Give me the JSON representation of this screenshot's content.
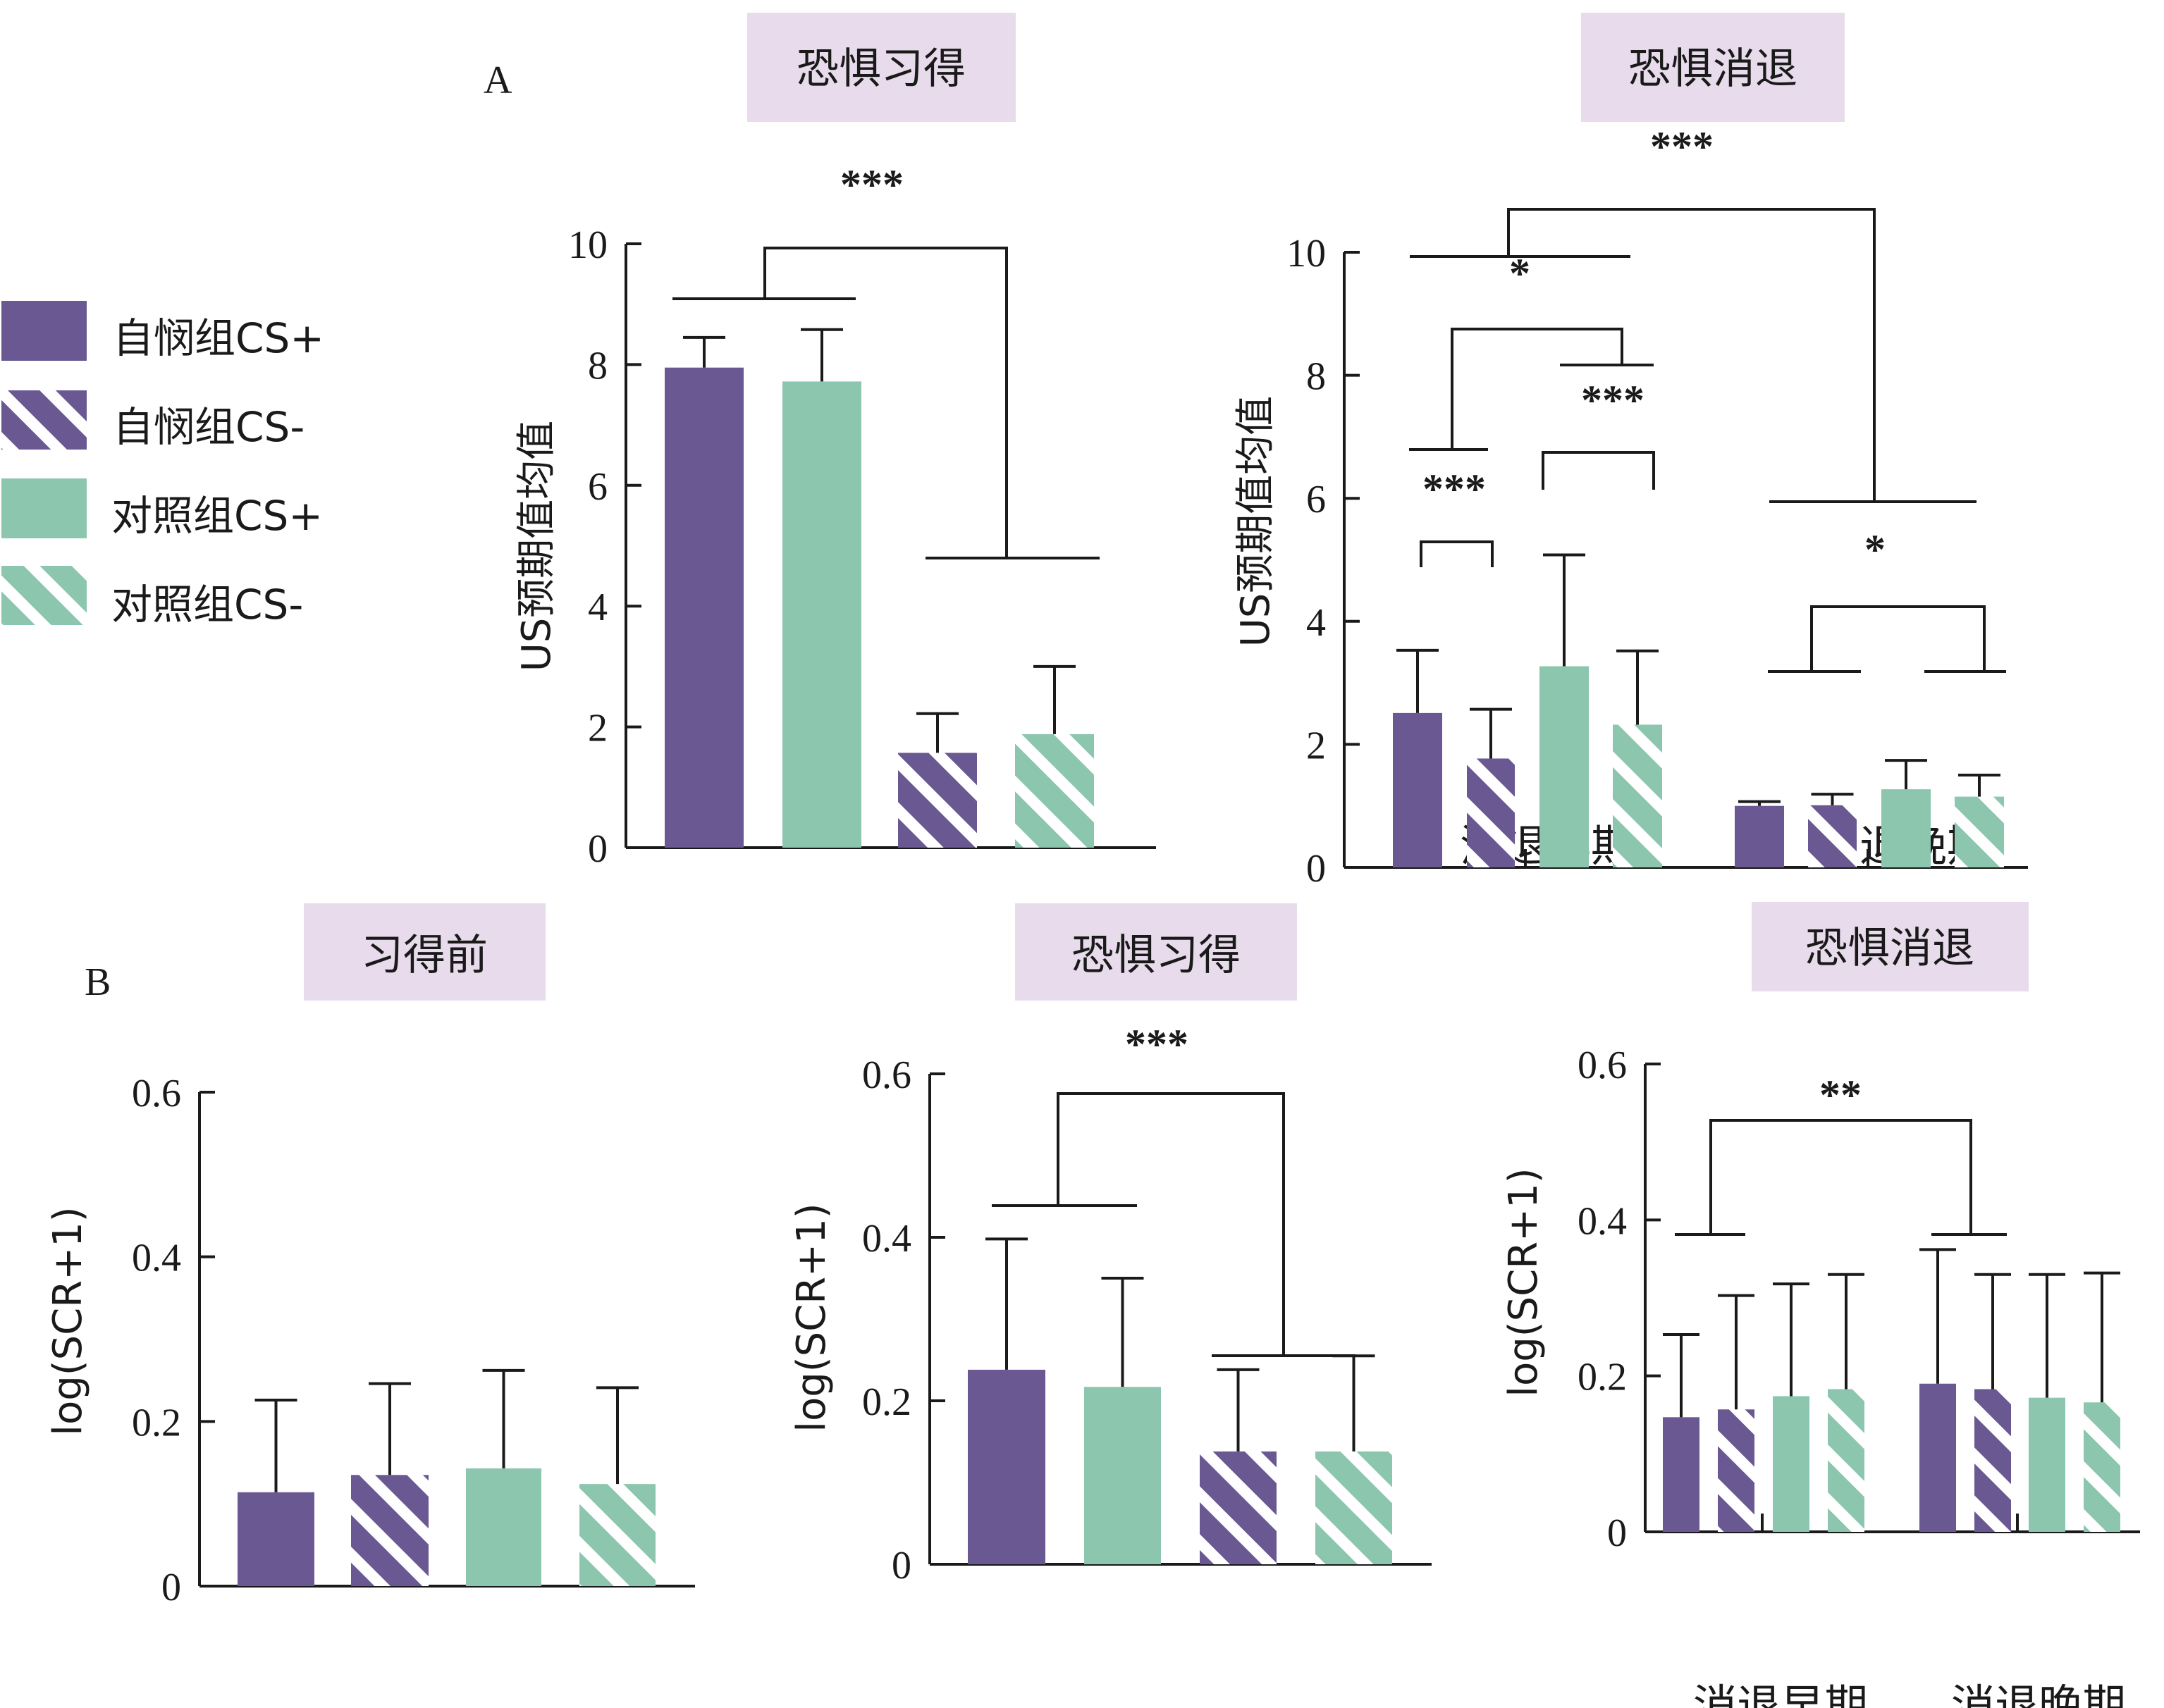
{
  "colors": {
    "self_compassion": "#6a5893",
    "control": "#8cc6ae",
    "title_bg": "#e8dcec",
    "ink": "#1a1a1a"
  },
  "legend": [
    {
      "label": "自悯组CS+",
      "group": "self_compassion",
      "hatched": false
    },
    {
      "label": "自悯组CS-",
      "group": "self_compassion",
      "hatched": true
    },
    {
      "label": "对照组CS+",
      "group": "control",
      "hatched": false
    },
    {
      "label": "对照组CS-",
      "group": "control",
      "hatched": true
    }
  ],
  "panel_labels": {
    "A": "A",
    "B": "B"
  },
  "chart_data": [
    {
      "id": "A1",
      "type": "bar",
      "panel": "A",
      "title": "恐惧习得",
      "ylabel": "US预期值均值",
      "ylim": [
        0,
        10
      ],
      "yticks": [
        0,
        2,
        4,
        6,
        8,
        10
      ],
      "ytick_labels": [
        "0",
        "2",
        "4",
        "6",
        "8",
        "10"
      ],
      "groups": [
        ""
      ],
      "bars": [
        {
          "series": "自悯组CS+",
          "value": 7.95,
          "error_upper": 8.45
        },
        {
          "series": "对照组CS+",
          "value": 7.72,
          "error_upper": 8.58
        },
        {
          "series": "自悯组CS-",
          "value": 1.57,
          "error_upper": 2.22
        },
        {
          "series": "对照组CS-",
          "value": 1.88,
          "error_upper": 3.0
        }
      ],
      "annotations": [
        {
          "text": "***",
          "comparison": "CS+ vs CS-"
        }
      ]
    },
    {
      "id": "A2",
      "type": "bar",
      "panel": "A",
      "title": "恐惧消退",
      "ylabel": "US预期值均值",
      "ylim": [
        0,
        10
      ],
      "yticks": [
        0,
        2,
        4,
        6,
        8,
        10
      ],
      "ytick_labels": [
        "0",
        "2",
        "4",
        "6",
        "8",
        "10"
      ],
      "groups": [
        "消退早期",
        "消退晚期"
      ],
      "bars": [
        {
          "group": "消退早期",
          "series": "自悯组CS+",
          "value": 2.51,
          "error_upper": 3.53
        },
        {
          "group": "消退早期",
          "series": "自悯组CS-",
          "value": 1.77,
          "error_upper": 2.57
        },
        {
          "group": "消退早期",
          "series": "对照组CS+",
          "value": 3.27,
          "error_upper": 5.08
        },
        {
          "group": "消退早期",
          "series": "对照组CS-",
          "value": 2.32,
          "error_upper": 3.52
        },
        {
          "group": "消退晚期",
          "series": "自悯组CS+",
          "value": 1.0,
          "error_upper": 1.07
        },
        {
          "group": "消退晚期",
          "series": "自悯组CS-",
          "value": 1.01,
          "error_upper": 1.19
        },
        {
          "group": "消退晚期",
          "series": "对照组CS+",
          "value": 1.27,
          "error_upper": 1.74
        },
        {
          "group": "消退晚期",
          "series": "对照组CS-",
          "value": 1.15,
          "error_upper": 1.5
        }
      ],
      "annotations": [
        {
          "text": "***",
          "comparison": "消退早期 vs 消退晚期"
        },
        {
          "text": "*",
          "comparison": "消退早期: 自悯组 vs 对照组"
        },
        {
          "text": "***",
          "comparison": "消退早期 自悯组: CS+ vs CS-"
        },
        {
          "text": "***",
          "comparison": "消退早期 对照组: CS+ vs CS-"
        },
        {
          "text": "*",
          "comparison": "消退晚期: 自悯组 vs 对照组"
        }
      ]
    },
    {
      "id": "B1",
      "type": "bar",
      "panel": "B",
      "title": "习得前",
      "ylabel": "log(SCR+1)",
      "ylim": [
        0,
        0.6
      ],
      "yticks": [
        0,
        0.2,
        0.4,
        0.6
      ],
      "ytick_labels": [
        "0",
        "0.2",
        "0.4",
        "0.6"
      ],
      "groups": [
        ""
      ],
      "bars": [
        {
          "series": "自悯组CS+",
          "value": 0.114,
          "error_upper": 0.226
        },
        {
          "series": "自悯组CS-",
          "value": 0.135,
          "error_upper": 0.246
        },
        {
          "series": "对照组CS+",
          "value": 0.143,
          "error_upper": 0.262
        },
        {
          "series": "对照组CS-",
          "value": 0.124,
          "error_upper": 0.241
        }
      ],
      "annotations": []
    },
    {
      "id": "B2",
      "type": "bar",
      "panel": "B",
      "title": "恐惧习得",
      "ylabel": "log(SCR+1)",
      "ylim": [
        0,
        0.6
      ],
      "yticks": [
        0,
        0.2,
        0.4,
        0.6
      ],
      "ytick_labels": [
        "0",
        "0.2",
        "0.4",
        "0.6"
      ],
      "groups": [
        ""
      ],
      "bars": [
        {
          "series": "自悯组CS+",
          "value": 0.238,
          "error_upper": 0.398
        },
        {
          "series": "对照组CS+",
          "value": 0.217,
          "error_upper": 0.35
        },
        {
          "series": "自悯组CS-",
          "value": 0.138,
          "error_upper": 0.238
        },
        {
          "series": "对照组CS-",
          "value": 0.138,
          "error_upper": 0.255
        }
      ],
      "annotations": [
        {
          "text": "***",
          "comparison": "CS+ vs CS-"
        }
      ]
    },
    {
      "id": "B3",
      "type": "bar",
      "panel": "B",
      "title": "恐惧消退",
      "ylabel": "log(SCR+1)",
      "ylim": [
        0,
        0.6
      ],
      "yticks": [
        0,
        0.2,
        0.4,
        0.6
      ],
      "ytick_labels": [
        "0",
        "0.2",
        "0.4",
        "0.6"
      ],
      "groups": [
        "消退早期",
        "消退晚期"
      ],
      "bars": [
        {
          "group": "消退早期",
          "series": "自悯组CS+",
          "value": 0.147,
          "error_upper": 0.253
        },
        {
          "group": "消退早期",
          "series": "自悯组CS-",
          "value": 0.157,
          "error_upper": 0.303
        },
        {
          "group": "消退早期",
          "series": "对照组CS+",
          "value": 0.174,
          "error_upper": 0.318
        },
        {
          "group": "消退早期",
          "series": "对照组CS-",
          "value": 0.183,
          "error_upper": 0.33
        },
        {
          "group": "消退晚期",
          "series": "自悯组CS+",
          "value": 0.19,
          "error_upper": 0.362
        },
        {
          "group": "消退晚期",
          "series": "自悯组CS-",
          "value": 0.183,
          "error_upper": 0.33
        },
        {
          "group": "消退晚期",
          "series": "对照组CS+",
          "value": 0.172,
          "error_upper": 0.33
        },
        {
          "group": "消退晚期",
          "series": "对照组CS-",
          "value": 0.166,
          "error_upper": 0.332
        }
      ],
      "annotations": [
        {
          "text": "**",
          "comparison": "消退早期 vs 消退晚期"
        }
      ]
    }
  ]
}
